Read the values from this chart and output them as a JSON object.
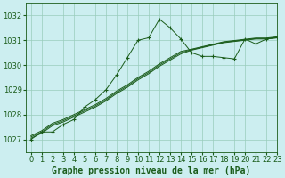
{
  "title": "Graphe pression niveau de la mer (hPa)",
  "bg_color": "#cceef0",
  "line_color": "#1a5c1a",
  "grid_color": "#99ccbb",
  "xlim": [
    -0.5,
    23
  ],
  "ylim": [
    1026.5,
    1032.5
  ],
  "yticks": [
    1027,
    1028,
    1029,
    1030,
    1031,
    1032
  ],
  "xticks": [
    0,
    1,
    2,
    3,
    4,
    5,
    6,
    7,
    8,
    9,
    10,
    11,
    12,
    13,
    14,
    15,
    16,
    17,
    18,
    19,
    20,
    21,
    22,
    23
  ],
  "volatile_series": [
    1027.0,
    1027.3,
    1027.3,
    1027.6,
    1027.8,
    1028.3,
    1028.6,
    1029.0,
    1029.6,
    1030.3,
    1031.0,
    1031.1,
    1031.85,
    1031.5,
    1031.05,
    1030.5,
    1030.35,
    1030.35,
    1030.3,
    1030.25,
    1031.05,
    1030.85,
    1031.05,
    1031.1
  ],
  "smooth_series": [
    [
      1027.05,
      1027.25,
      1027.55,
      1027.7,
      1027.9,
      1028.1,
      1028.3,
      1028.55,
      1028.85,
      1029.1,
      1029.4,
      1029.65,
      1029.95,
      1030.2,
      1030.45,
      1030.6,
      1030.7,
      1030.8,
      1030.9,
      1030.95,
      1031.0,
      1031.05,
      1031.05,
      1031.1
    ],
    [
      1027.1,
      1027.3,
      1027.6,
      1027.75,
      1027.95,
      1028.15,
      1028.35,
      1028.6,
      1028.9,
      1029.15,
      1029.45,
      1029.7,
      1030.0,
      1030.25,
      1030.5,
      1030.62,
      1030.72,
      1030.82,
      1030.92,
      1030.97,
      1031.02,
      1031.07,
      1031.07,
      1031.12
    ],
    [
      1027.15,
      1027.35,
      1027.65,
      1027.8,
      1028.0,
      1028.2,
      1028.4,
      1028.65,
      1028.95,
      1029.2,
      1029.5,
      1029.75,
      1030.05,
      1030.3,
      1030.55,
      1030.64,
      1030.74,
      1030.84,
      1030.94,
      1030.99,
      1031.04,
      1031.09,
      1031.09,
      1031.14
    ]
  ],
  "title_fontsize": 7,
  "tick_fontsize": 6
}
